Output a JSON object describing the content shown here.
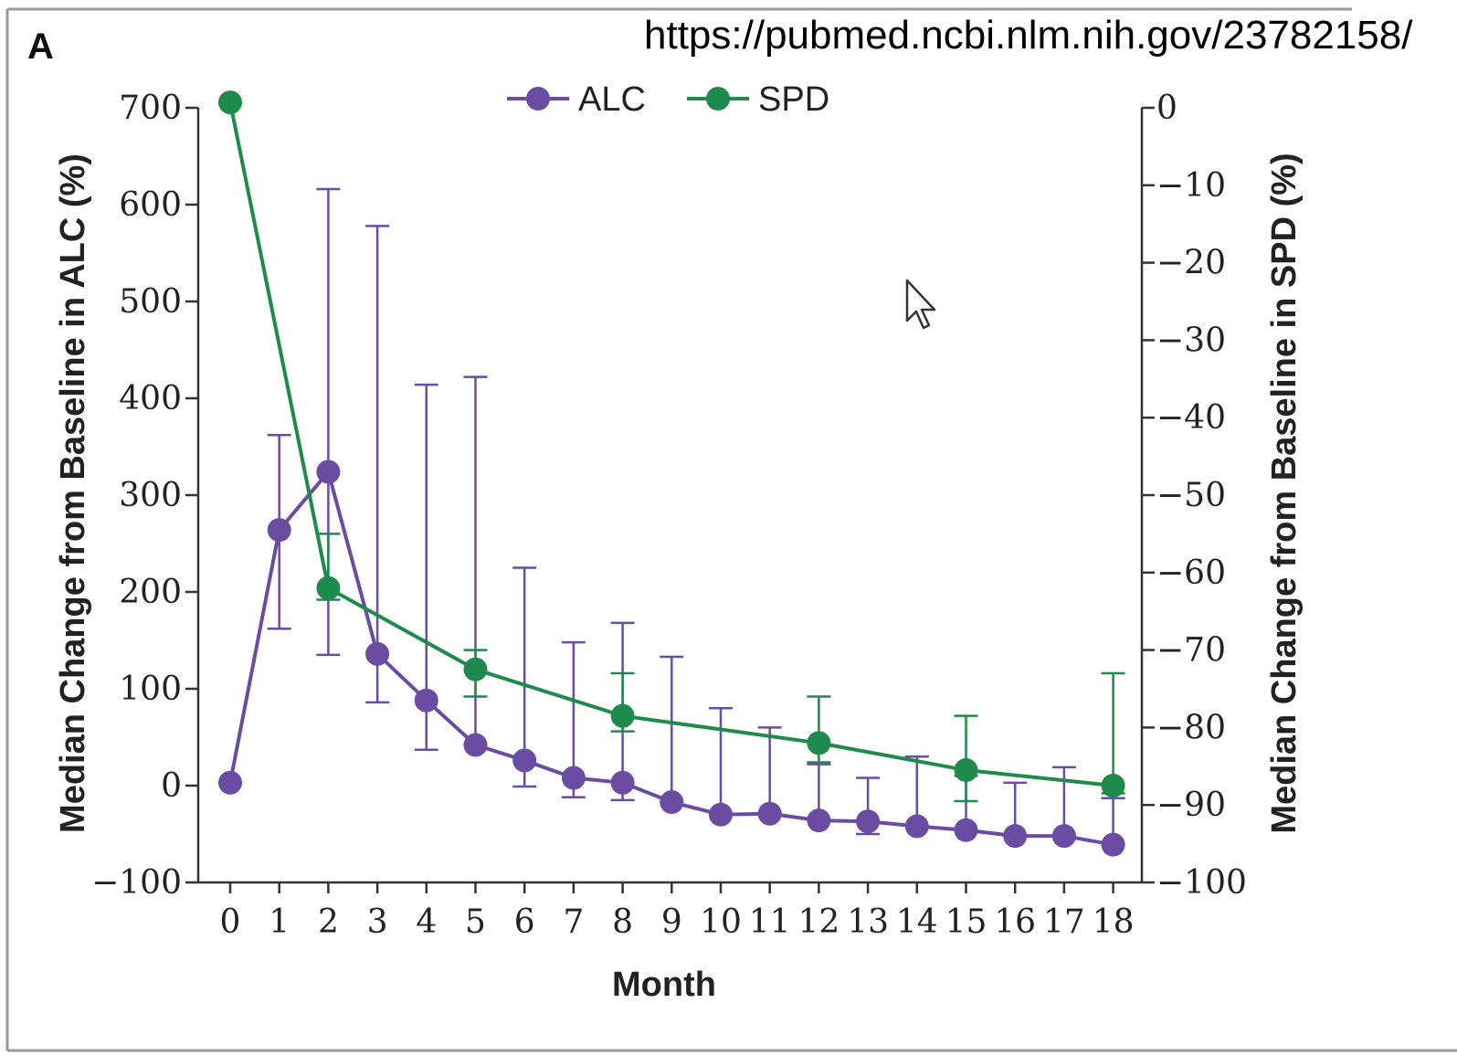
{
  "url": "https://pubmed.ncbi.nlm.nih.gov/23782158/",
  "colors": {
    "alc": "#6a4da3",
    "spd": "#1e8a4c",
    "axis": "#333333"
  },
  "chart_data": {
    "type": "line",
    "panel_label": "A",
    "xlabel": "Month",
    "ylabel_left": "Median Change from Baseline in ALC (%)",
    "ylabel_right": "Median Change from Baseline in SPD (%)",
    "x": [
      0,
      1,
      2,
      3,
      4,
      5,
      6,
      7,
      8,
      9,
      10,
      11,
      12,
      13,
      14,
      15,
      16,
      17,
      18
    ],
    "x_tick_labels": [
      "0",
      "1",
      "2",
      "3",
      "4",
      "5",
      "6",
      "7",
      "8",
      "9",
      "10",
      "11",
      "12",
      "13",
      "14",
      "15",
      "16",
      "17",
      "18"
    ],
    "ylim_left": [
      -100,
      700
    ],
    "y_ticks_left": [
      700,
      600,
      500,
      400,
      300,
      200,
      100,
      0,
      -100
    ],
    "y_tick_labels_left": [
      "700",
      "600",
      "500",
      "400",
      "300",
      "200",
      "100",
      "0",
      "−100"
    ],
    "ylim_right": [
      -100,
      0
    ],
    "y_ticks_right": [
      0,
      -10,
      -20,
      -30,
      -40,
      -50,
      -60,
      -70,
      -80,
      -90,
      -100
    ],
    "y_tick_labels_right": [
      "0",
      "−10",
      "−20",
      "−30",
      "−40",
      "−50",
      "−60",
      "−70",
      "−80",
      "−90",
      "−100"
    ],
    "legend": {
      "placement": "top-center",
      "entries": [
        "ALC",
        "SPD"
      ]
    },
    "series": [
      {
        "name": "ALC",
        "axis": "left",
        "points": [
          {
            "x": 0,
            "y": 3
          },
          {
            "x": 1,
            "y": 264,
            "lo": 162,
            "hi": 362
          },
          {
            "x": 2,
            "y": 324,
            "lo": 135,
            "hi": 616
          },
          {
            "x": 3,
            "y": 136,
            "lo": 86,
            "hi": 578
          },
          {
            "x": 4,
            "y": 88,
            "lo": 37,
            "hi": 414
          },
          {
            "x": 5,
            "y": 42,
            "lo": 42,
            "hi": 422
          },
          {
            "x": 6,
            "y": 26,
            "lo": -1,
            "hi": 225
          },
          {
            "x": 7,
            "y": 8,
            "lo": -12,
            "hi": 148
          },
          {
            "x": 8,
            "y": 3,
            "lo": -15,
            "hi": 168
          },
          {
            "x": 9,
            "y": -17,
            "lo": -17,
            "hi": 133
          },
          {
            "x": 10,
            "y": -30,
            "lo": -30,
            "hi": 80
          },
          {
            "x": 11,
            "y": -29,
            "lo": -29,
            "hi": 60
          },
          {
            "x": 12,
            "y": -36,
            "lo": -36,
            "hi": 22
          },
          {
            "x": 13,
            "y": -37,
            "lo": -50,
            "hi": 8
          },
          {
            "x": 14,
            "y": -42,
            "lo": -42,
            "hi": 30
          },
          {
            "x": 15,
            "y": -46,
            "lo": -46,
            "hi": 10
          },
          {
            "x": 16,
            "y": -52,
            "lo": -52,
            "hi": 3
          },
          {
            "x": 17,
            "y": -52,
            "lo": -52,
            "hi": 19
          },
          {
            "x": 18,
            "y": -61,
            "lo": -61,
            "hi": -13
          }
        ]
      },
      {
        "name": "SPD",
        "axis": "right",
        "points": [
          {
            "x": 0,
            "y": 0.7
          },
          {
            "x": 2,
            "y": -62,
            "lo": -63.5,
            "hi": -55
          },
          {
            "x": 5,
            "y": -72.5,
            "lo": -76,
            "hi": -70
          },
          {
            "x": 8,
            "y": -78.5,
            "lo": -80.5,
            "hi": -73
          },
          {
            "x": 12,
            "y": -82,
            "lo": -84.5,
            "hi": -76
          },
          {
            "x": 15,
            "y": -85.5,
            "lo": -89.5,
            "hi": -78.5
          },
          {
            "x": 18,
            "y": -87.5,
            "lo": -88.5,
            "hi": -73
          }
        ]
      }
    ]
  }
}
